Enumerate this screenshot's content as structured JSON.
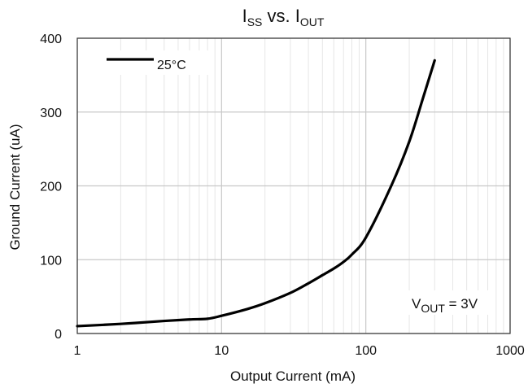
{
  "chart_data": {
    "type": "line",
    "title": {
      "main": "I",
      "sub1": "SS",
      "mid": " vs. I",
      "sub2": "OUT"
    },
    "xlabel": "Output Current (mA)",
    "ylabel": "Ground Current (uA)",
    "x_scale": "log",
    "xlim": [
      1,
      1000
    ],
    "ylim": [
      0,
      400
    ],
    "x_ticks": [
      1,
      10,
      100,
      1000
    ],
    "x_tick_labels": [
      "1",
      "10",
      "100",
      "1000"
    ],
    "y_ticks": [
      0,
      100,
      200,
      300,
      400
    ],
    "y_tick_labels": [
      "0",
      "100",
      "200",
      "300",
      "400"
    ],
    "grid": true,
    "legend_position": "top-left",
    "series": [
      {
        "name": "25°C",
        "color": "#000000",
        "x": [
          1,
          2,
          4,
          6,
          8,
          10,
          15,
          20,
          30,
          40,
          50,
          60,
          70,
          80,
          100,
          150,
          200,
          250,
          300
        ],
        "y": [
          10,
          13,
          17,
          19,
          20,
          24,
          33,
          41,
          55,
          68,
          79,
          88,
          97,
          107,
          130,
          200,
          260,
          320,
          370
        ]
      }
    ],
    "annotation": {
      "v": "V",
      "sub": "OUT",
      "rest": " = 3V"
    }
  }
}
